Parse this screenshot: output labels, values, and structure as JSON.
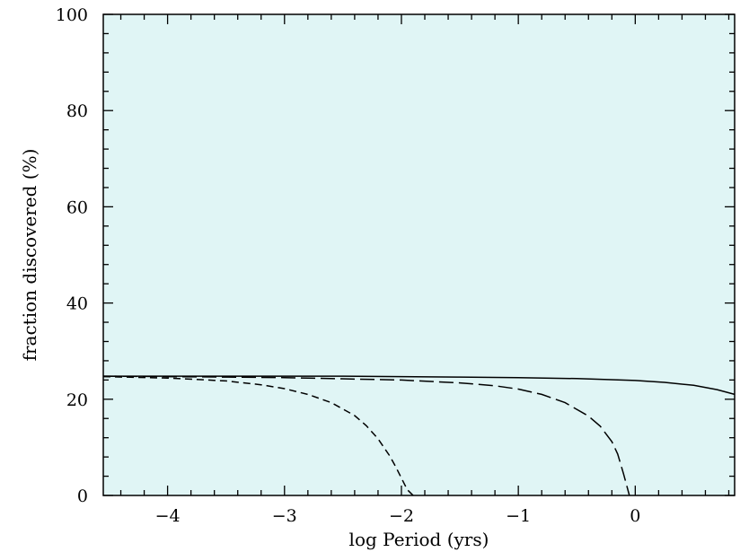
{
  "chart_data": {
    "type": "line",
    "title": "",
    "xlabel": "log Period (yrs)",
    "ylabel": "fraction discovered (%)",
    "xlim": [
      -4.55,
      0.85
    ],
    "ylim": [
      0,
      100
    ],
    "xticks": [
      -4,
      -3,
      -2,
      -1,
      0
    ],
    "xtick_labels": [
      "−4",
      "−3",
      "−2",
      "−1",
      "0"
    ],
    "yticks": [
      0,
      20,
      40,
      60,
      80,
      100
    ],
    "ytick_labels": [
      "0",
      "20",
      "40",
      "60",
      "80",
      "100"
    ],
    "grid": false,
    "plot_background": "#e0f5f5",
    "series": [
      {
        "style": "solid",
        "x": [
          -4.55,
          -4.0,
          -3.5,
          -3.0,
          -2.5,
          -2.0,
          -1.5,
          -1.0,
          -0.5,
          0.0,
          0.25,
          0.5,
          0.7,
          0.85
        ],
        "y": [
          24.8,
          24.8,
          24.8,
          24.8,
          24.8,
          24.7,
          24.6,
          24.5,
          24.3,
          23.9,
          23.5,
          22.9,
          22.0,
          21.0
        ]
      },
      {
        "style": "dashed",
        "x": [
          -4.55,
          -4.0,
          -3.5,
          -3.2,
          -3.0,
          -2.8,
          -2.6,
          -2.4,
          -2.3,
          -2.2,
          -2.1,
          -2.05,
          -2.0,
          -1.95,
          -1.9
        ],
        "y": [
          24.7,
          24.4,
          23.8,
          23.0,
          22.2,
          21.0,
          19.3,
          16.6,
          14.5,
          11.8,
          8.2,
          6.0,
          3.6,
          1.2,
          0
        ]
      },
      {
        "style": "long-dashed",
        "x": [
          -4.55,
          -4.0,
          -3.0,
          -2.0,
          -1.5,
          -1.2,
          -1.0,
          -0.8,
          -0.6,
          -0.4,
          -0.3,
          -0.2,
          -0.15,
          -0.1,
          -0.05
        ],
        "y": [
          24.8,
          24.7,
          24.5,
          24.0,
          23.4,
          22.8,
          22.1,
          21.0,
          19.3,
          16.5,
          14.4,
          11.2,
          8.6,
          4.5,
          0
        ]
      }
    ]
  }
}
